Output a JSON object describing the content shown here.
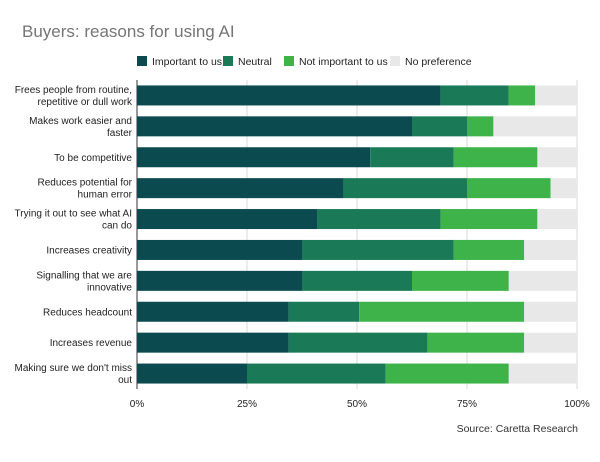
{
  "chart_data": {
    "type": "bar",
    "orientation": "horizontal",
    "stacked": true,
    "title": "Buyers: reasons for using AI",
    "source": "Source: Caretta Research",
    "legend_position": "top",
    "grid": true,
    "xlim": [
      0,
      100
    ],
    "x_ticks": [
      0,
      25,
      50,
      75,
      100
    ],
    "x_tick_labels": [
      "0%",
      "25%",
      "50%",
      "75%",
      "100%"
    ],
    "categories": [
      [
        "Frees people from routine,",
        "repetitive or dull work"
      ],
      [
        "Makes work easier and",
        "faster"
      ],
      [
        "To be competitive"
      ],
      [
        "Reduces potential for",
        "human error"
      ],
      [
        "Trying it out to see what AI",
        "can do"
      ],
      [
        "Increases creativity"
      ],
      [
        "Signalling that we are",
        "innovative"
      ],
      [
        "Reduces headcount"
      ],
      [
        "Increases revenue"
      ],
      [
        "Making sure we don't miss",
        "out"
      ]
    ],
    "series": [
      {
        "name": "Important to us",
        "color": "#0b4a4f",
        "values": [
          69,
          62.5,
          53,
          47,
          41,
          37.5,
          37.5,
          34.5,
          34.5,
          25
        ]
      },
      {
        "name": "Neutral",
        "color": "#1a7a58",
        "values": [
          15.5,
          12.5,
          19,
          28,
          28,
          34.5,
          25,
          16,
          31.5,
          31.5
        ]
      },
      {
        "name": "Not important to us",
        "color": "#3db34a",
        "values": [
          6,
          6,
          19,
          19,
          22,
          16,
          22,
          37.5,
          22,
          28
        ]
      },
      {
        "name": "No preference",
        "color": "#e8e8e8",
        "values": [
          9.5,
          19,
          9,
          6,
          9,
          12,
          15.5,
          12,
          12,
          15.5
        ]
      }
    ]
  }
}
